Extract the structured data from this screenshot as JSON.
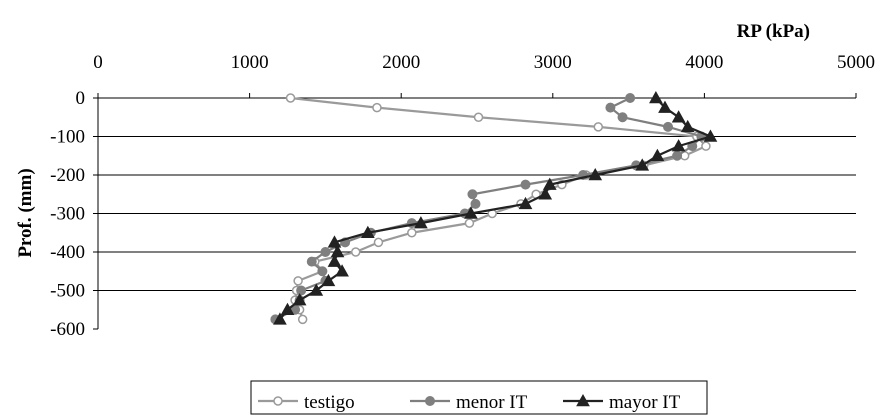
{
  "chart_data": {
    "type": "line",
    "title": "",
    "xlabel": "RP (kPa)",
    "ylabel": "Prof. (mm)",
    "xlim": [
      0,
      5000
    ],
    "ylim": [
      -600,
      0
    ],
    "x_axis_position": "top",
    "x_ticks": [
      0,
      1000,
      2000,
      3000,
      4000,
      5000
    ],
    "y_ticks": [
      0,
      -100,
      -200,
      -300,
      -400,
      -500,
      -600
    ],
    "grid": "horizontal",
    "legend": "bottom-center",
    "series": [
      {
        "name": "testigo",
        "color": "#9a9a9a",
        "marker": "circle-open",
        "points": [
          [
            1270,
            0
          ],
          [
            1840,
            -25
          ],
          [
            2510,
            -50
          ],
          [
            3300,
            -75
          ],
          [
            3950,
            -100
          ],
          [
            4010,
            -125
          ],
          [
            3870,
            -150
          ],
          [
            3600,
            -175
          ],
          [
            3220,
            -200
          ],
          [
            3060,
            -225
          ],
          [
            2890,
            -250
          ],
          [
            2790,
            -275
          ],
          [
            2600,
            -300
          ],
          [
            2450,
            -325
          ],
          [
            2070,
            -350
          ],
          [
            1850,
            -375
          ],
          [
            1700,
            -400
          ],
          [
            1430,
            -425
          ],
          [
            1480,
            -450
          ],
          [
            1320,
            -475
          ],
          [
            1310,
            -500
          ],
          [
            1300,
            -525
          ],
          [
            1330,
            -550
          ],
          [
            1350,
            -575
          ]
        ]
      },
      {
        "name": "menor IT",
        "color": "#7f7f7f",
        "marker": "circle-filled",
        "points": [
          [
            3510,
            0
          ],
          [
            3380,
            -25
          ],
          [
            3460,
            -50
          ],
          [
            3760,
            -75
          ],
          [
            3980,
            -100
          ],
          [
            3920,
            -125
          ],
          [
            3820,
            -150
          ],
          [
            3550,
            -175
          ],
          [
            3200,
            -200
          ],
          [
            2820,
            -225
          ],
          [
            2470,
            -250
          ],
          [
            2490,
            -275
          ],
          [
            2420,
            -300
          ],
          [
            2070,
            -325
          ],
          [
            1800,
            -350
          ],
          [
            1630,
            -375
          ],
          [
            1500,
            -400
          ],
          [
            1410,
            -425
          ],
          [
            1480,
            -450
          ],
          [
            1500,
            -475
          ],
          [
            1340,
            -500
          ],
          [
            1330,
            -525
          ],
          [
            1300,
            -550
          ],
          [
            1170,
            -575
          ]
        ]
      },
      {
        "name": "mayor IT",
        "color": "#222222",
        "marker": "triangle-filled",
        "points": [
          [
            3680,
            0
          ],
          [
            3740,
            -25
          ],
          [
            3830,
            -50
          ],
          [
            3890,
            -75
          ],
          [
            4040,
            -100
          ],
          [
            3830,
            -125
          ],
          [
            3690,
            -150
          ],
          [
            3590,
            -175
          ],
          [
            3280,
            -200
          ],
          [
            2980,
            -225
          ],
          [
            2950,
            -250
          ],
          [
            2820,
            -275
          ],
          [
            2460,
            -300
          ],
          [
            2130,
            -325
          ],
          [
            1780,
            -350
          ],
          [
            1560,
            -375
          ],
          [
            1580,
            -400
          ],
          [
            1560,
            -425
          ],
          [
            1610,
            -450
          ],
          [
            1520,
            -475
          ],
          [
            1440,
            -500
          ],
          [
            1330,
            -525
          ],
          [
            1250,
            -550
          ],
          [
            1200,
            -575
          ]
        ]
      }
    ]
  }
}
